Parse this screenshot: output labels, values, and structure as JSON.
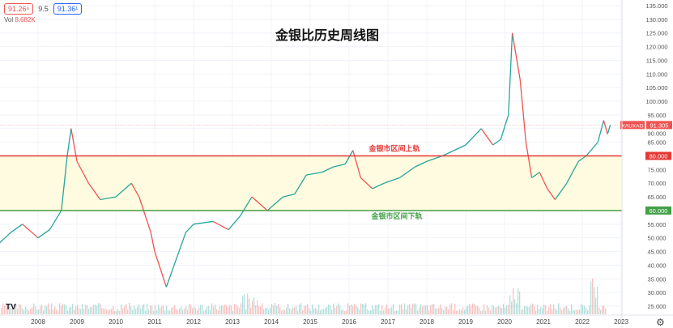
{
  "title": "金银比历史周线图",
  "legend": {
    "bid": "91.26⁶",
    "spread": "9.5",
    "ask": "91.36¹",
    "vol_label": "Vol",
    "vol_value": "8.682K"
  },
  "colors": {
    "up": "#26a69a",
    "down": "#ef5350",
    "upper": "#e53935",
    "lower": "#43a047",
    "band": "#fffbe0"
  },
  "icons": {
    "logo": "tradingview-logo",
    "settings": "gear-icon"
  },
  "logo_text": "TV",
  "chart_data": {
    "type": "line",
    "symbol": "XAUXAG",
    "last_value": "91.305",
    "ylim": [
      25,
      135
    ],
    "yticks": [
      "25.000",
      "30.000",
      "35.000",
      "40.000",
      "45.000",
      "50.000",
      "55.000",
      "60.000",
      "65.000",
      "70.000",
      "75.000",
      "80.000",
      "85.000",
      "90.000",
      "95.000",
      "100.000",
      "105.000",
      "110.000",
      "115.000",
      "120.000",
      "125.000",
      "130.000",
      "135.000"
    ],
    "xticks": [
      "2008",
      "2009",
      "2010",
      "2011",
      "2012",
      "2013",
      "2014",
      "2015",
      "2016",
      "2017",
      "2018",
      "2019",
      "2020",
      "2021",
      "2022",
      "2023"
    ],
    "grid": true,
    "hlines": [
      {
        "value": 80,
        "label": "80.000",
        "annotation": "金银市区间上轨"
      },
      {
        "value": 60,
        "label": "60.000",
        "annotation": "金银市区间下轨"
      }
    ],
    "x": [
      2007.0,
      2007.3,
      2007.6,
      2008.0,
      2008.3,
      2008.6,
      2008.75,
      2008.85,
      2009.0,
      2009.3,
      2009.6,
      2010.0,
      2010.4,
      2010.6,
      2010.9,
      2011.0,
      2011.3,
      2011.5,
      2011.8,
      2012.0,
      2012.5,
      2012.9,
      2013.2,
      2013.5,
      2013.9,
      2014.3,
      2014.6,
      2014.9,
      2015.3,
      2015.6,
      2015.9,
      2016.1,
      2016.3,
      2016.6,
      2016.9,
      2017.3,
      2017.7,
      2018.0,
      2018.4,
      2018.7,
      2019.0,
      2019.4,
      2019.7,
      2019.9,
      2020.1,
      2020.2,
      2020.4,
      2020.55,
      2020.7,
      2020.9,
      2021.1,
      2021.3,
      2021.6,
      2021.9,
      2022.1,
      2022.4,
      2022.55,
      2022.65,
      2022.72
    ],
    "y": [
      48,
      52,
      55,
      50,
      53,
      60,
      80,
      90,
      78,
      70,
      64,
      65,
      70,
      65,
      52,
      45,
      32,
      40,
      52,
      55,
      56,
      53,
      58,
      65,
      60,
      65,
      66,
      73,
      74,
      76,
      77,
      82,
      72,
      68,
      70,
      72,
      76,
      78,
      80,
      82,
      84,
      90,
      84,
      86,
      95,
      125,
      108,
      85,
      72,
      74,
      68,
      64,
      70,
      78,
      80,
      85,
      93,
      88,
      91.3
    ]
  }
}
